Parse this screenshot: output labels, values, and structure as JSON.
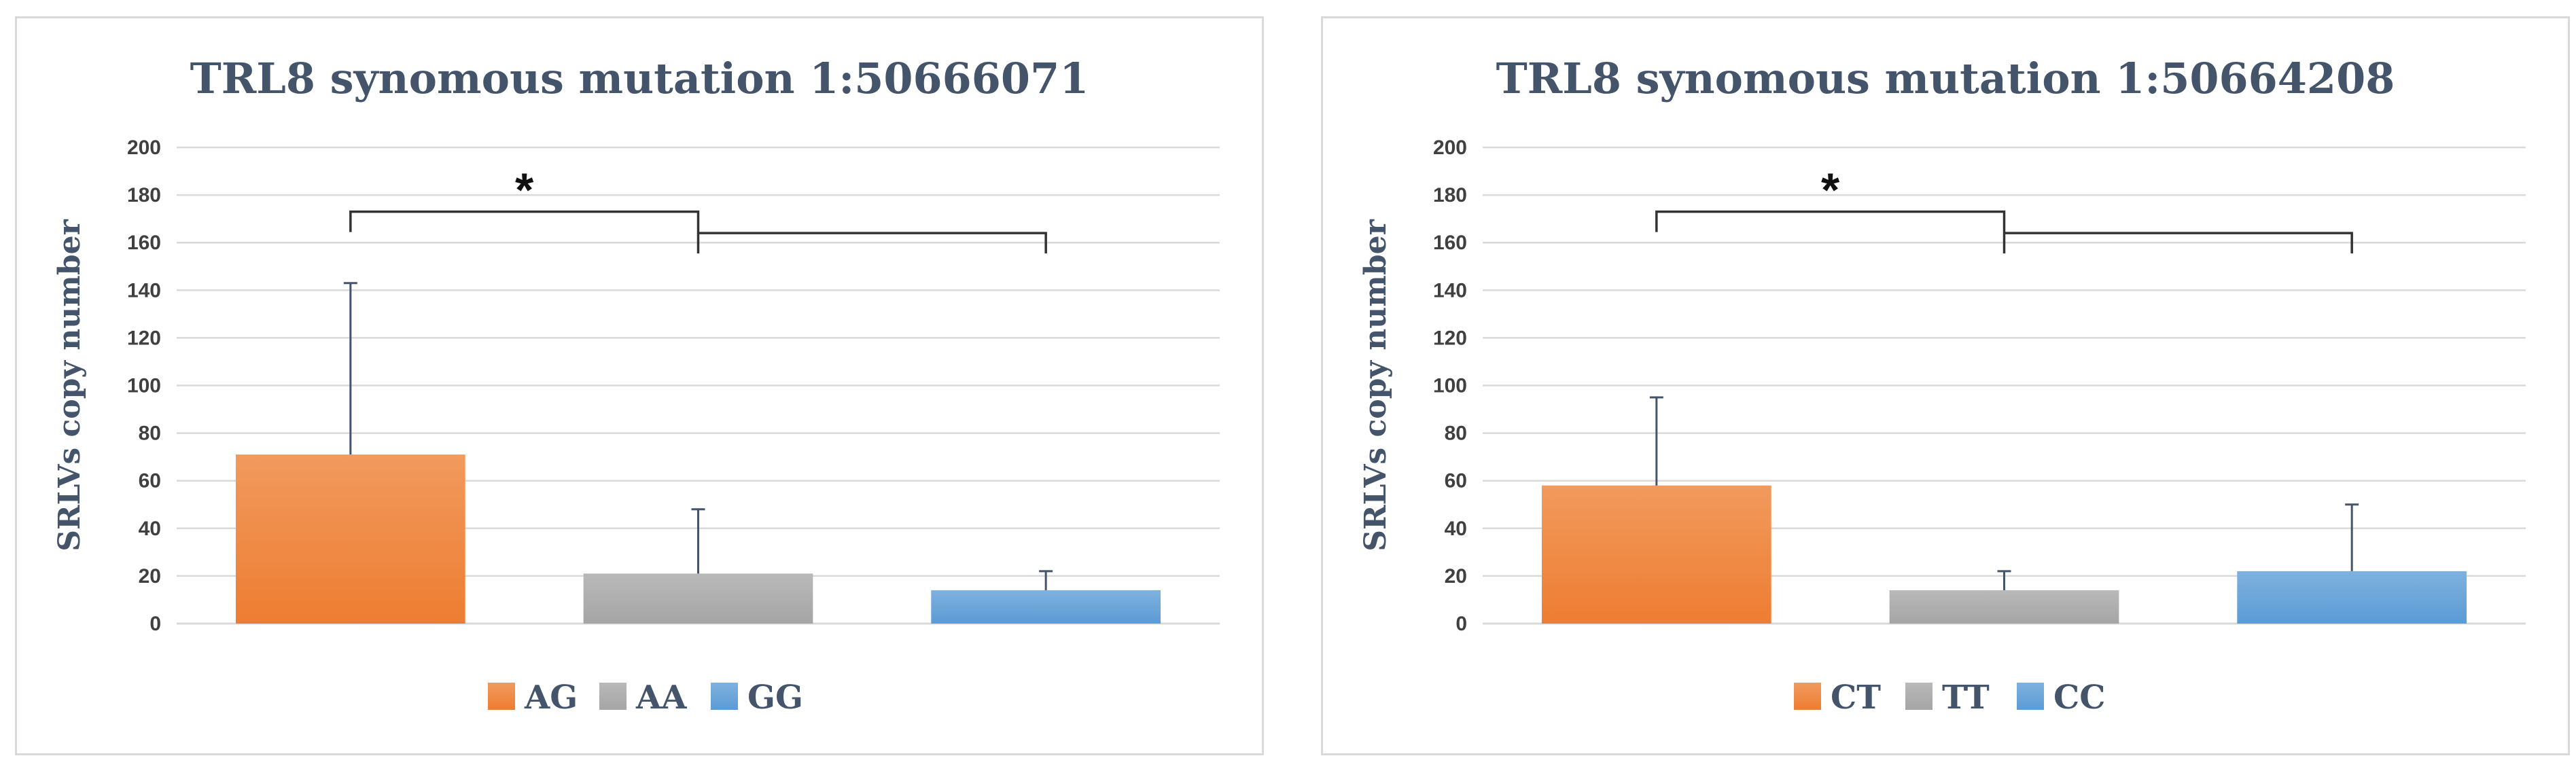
{
  "chart_data": [
    {
      "type": "bar",
      "title": "TRL8 synomous mutation 1:50666071",
      "ylabel": "SRLVs copy number",
      "xlabel": "",
      "ylim": [
        0,
        200
      ],
      "y_ticks": [
        "0",
        "20",
        "40",
        "60",
        "80",
        "100",
        "120",
        "140",
        "160",
        "180",
        "200"
      ],
      "categories": [
        "AG",
        "AA",
        "GG"
      ],
      "values": [
        71,
        21,
        14
      ],
      "error_upper": [
        143,
        48,
        22
      ],
      "colors": [
        "#ed7d31",
        "#a5a5a5",
        "#5b9bd5"
      ],
      "significance": {
        "symbol": "*",
        "brackets": [
          {
            "from": "AG",
            "to": "AA"
          },
          {
            "from": "AA",
            "to": "GG"
          }
        ]
      },
      "legend_position": "bottom",
      "grid": true
    },
    {
      "type": "bar",
      "title": "TRL8 synomous mutation 1:50664208",
      "ylabel": "SRLVs copy number",
      "xlabel": "",
      "ylim": [
        0,
        200
      ],
      "y_ticks": [
        "0",
        "20",
        "40",
        "60",
        "80",
        "100",
        "120",
        "140",
        "160",
        "180",
        "200"
      ],
      "categories": [
        "CT",
        "TT",
        "CC"
      ],
      "values": [
        58,
        14,
        22
      ],
      "error_upper": [
        95,
        22,
        50
      ],
      "colors": [
        "#ed7d31",
        "#a5a5a5",
        "#5b9bd5"
      ],
      "significance": {
        "symbol": "*",
        "brackets": [
          {
            "from": "CT",
            "to": "TT"
          },
          {
            "from": "TT",
            "to": "CC"
          }
        ]
      },
      "legend_position": "bottom",
      "grid": true
    }
  ]
}
